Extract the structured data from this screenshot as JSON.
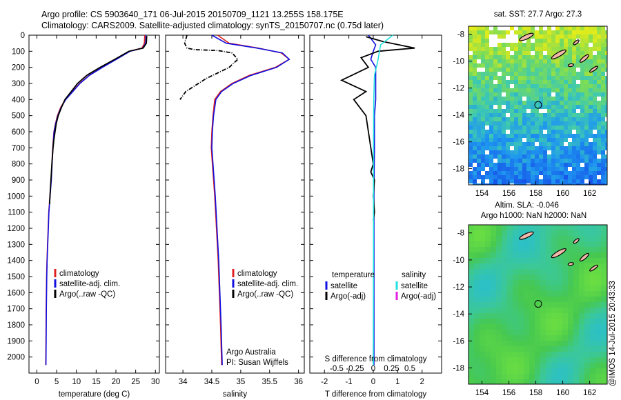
{
  "header": {
    "line1": "Argo profile: CS 5903640_171 06-Jul-2015 20150709_1121 13.255S 158.175E",
    "line2": "Climatology: CARS2009. Satellite-adjusted climatology: synTS_20150707.nc (0.75d later)"
  },
  "credit": "@IMOS 14-Jul-2015 20:43:33",
  "chart_data": [
    {
      "type": "line",
      "xlabel": "temperature (deg C)",
      "ylabel": "",
      "xlim": [
        -2,
        31
      ],
      "ylim": [
        2100,
        0
      ],
      "x_ticks": [
        0,
        5,
        10,
        15,
        20,
        25,
        30
      ],
      "y_ticks": [
        0,
        100,
        200,
        300,
        400,
        500,
        600,
        700,
        800,
        900,
        1000,
        1100,
        1200,
        1300,
        1400,
        1500,
        1600,
        1700,
        1800,
        1900,
        2000
      ],
      "legend": [
        "climatology",
        "satellite-adj. clim.",
        "Argo(..raw -QC)"
      ],
      "series": [
        {
          "name": "climatology",
          "color": "#e02020",
          "x": [
            27.3,
            27.2,
            26.6,
            23.5,
            20.0,
            16.5,
            13.2,
            10.8,
            9.0,
            7.2,
            6.0,
            5.2,
            4.7,
            4.3,
            4.0,
            3.8,
            3.6,
            3.3,
            3.0,
            2.85,
            2.7,
            2.55,
            2.45,
            2.35,
            2.3,
            2.25
          ],
          "y": [
            0,
            50,
            80,
            100,
            150,
            200,
            250,
            300,
            350,
            400,
            450,
            500,
            550,
            600,
            700,
            800,
            900,
            1000,
            1100,
            1200,
            1300,
            1400,
            1500,
            1700,
            1900,
            2050
          ]
        },
        {
          "name": "satellite-adj. clim.",
          "color": "#1010e0",
          "x": [
            27.6,
            27.5,
            26.8,
            23.6,
            20.1,
            16.6,
            13.3,
            10.9,
            9.1,
            7.3,
            6.1,
            5.3,
            4.75,
            4.35,
            4.05,
            3.85,
            3.65,
            3.35,
            3.05,
            2.9,
            2.75,
            2.6,
            2.5,
            2.4,
            2.35,
            2.3
          ],
          "y": [
            0,
            50,
            80,
            100,
            150,
            200,
            250,
            300,
            350,
            400,
            450,
            500,
            550,
            600,
            700,
            800,
            900,
            1000,
            1100,
            1200,
            1300,
            1400,
            1500,
            1700,
            1900,
            2050
          ]
        },
        {
          "name": "Argo(..raw -QC)",
          "color": "#000000",
          "x": [
            27.8,
            27.7,
            26.9,
            23.3,
            19.7,
            16.0,
            12.6,
            10.3,
            8.7,
            7.1,
            6.2,
            5.4,
            4.9,
            4.6,
            4.3,
            4.1,
            3.8,
            3.55,
            3.3,
            3.2
          ],
          "y": [
            5,
            50,
            80,
            100,
            150,
            200,
            250,
            300,
            350,
            400,
            450,
            500,
            550,
            600,
            650,
            700,
            800,
            900,
            1000,
            1050
          ]
        }
      ]
    },
    {
      "type": "line",
      "xlabel": "salinity",
      "xlim": [
        33.7,
        36.1
      ],
      "ylim": [
        2100,
        0
      ],
      "x_ticks": [
        34,
        34.5,
        35,
        35.5,
        36
      ],
      "legend": [
        "climatology",
        "satellite-adj. clim.",
        "Argo(..raw -QC)"
      ],
      "annotation": [
        "Argo Australia",
        "PI: Susan Wijffels"
      ],
      "series": [
        {
          "name": "climatology",
          "color": "#e02020",
          "x": [
            34.6,
            34.8,
            35.3,
            35.7,
            35.84,
            35.6,
            35.15,
            34.85,
            34.65,
            34.55,
            34.52,
            34.5,
            34.49,
            34.51,
            34.55,
            34.58,
            34.61,
            34.63,
            34.65,
            34.67
          ],
          "y": [
            0,
            50,
            80,
            110,
            150,
            200,
            250,
            300,
            350,
            400,
            500,
            600,
            700,
            800,
            1000,
            1200,
            1400,
            1600,
            1800,
            2050
          ]
        },
        {
          "name": "satellite-adj. clim.",
          "color": "#1010e0",
          "x": [
            34.5,
            34.75,
            35.28,
            35.72,
            35.84,
            35.62,
            35.18,
            34.87,
            34.67,
            34.57,
            34.53,
            34.51,
            34.5,
            34.52,
            34.56,
            34.59,
            34.62,
            34.64,
            34.66,
            34.68
          ],
          "y": [
            0,
            50,
            80,
            110,
            150,
            200,
            250,
            300,
            350,
            400,
            500,
            600,
            700,
            800,
            1000,
            1200,
            1400,
            1600,
            1800,
            2050
          ]
        },
        {
          "name": "Argo(..raw -QC)",
          "color": "#000000",
          "x": [
            34.07,
            34.03,
            34.07,
            34.2,
            34.6,
            34.85,
            34.95,
            34.8,
            34.4,
            34.05,
            33.95
          ],
          "y": [
            0,
            50,
            80,
            90,
            95,
            110,
            150,
            200,
            270,
            350,
            400
          ]
        }
      ]
    },
    {
      "type": "line",
      "xlabel": "T difference from climatology",
      "x2label": "S difference from climatology",
      "xlim": [
        -2.6,
        2.8
      ],
      "ylim": [
        2100,
        0
      ],
      "x_ticks": [
        -2,
        -1,
        0,
        1,
        2
      ],
      "x2_ticks": [
        "-0.5",
        "-0.25",
        "0",
        "0.25",
        "0.5"
      ],
      "legend": {
        "temperature": [
          "satellite",
          "Argo(-adj)"
        ],
        "salinity": [
          "satellite",
          "Argo(-adj)"
        ]
      },
      "series": [
        {
          "name": "temperature satellite",
          "color": "#1010e0",
          "x": [
            -0.2,
            0.1,
            0.0,
            -0.1,
            0.1,
            0.1,
            0.1,
            0.05,
            0.05,
            0.05,
            0.04,
            0.03,
            0.03,
            0.03,
            0.03,
            0.03,
            0.03
          ],
          "y": [
            0,
            60,
            100,
            150,
            200,
            300,
            400,
            500,
            600,
            700,
            800,
            1000,
            1200,
            1400,
            1600,
            1800,
            2050
          ]
        },
        {
          "name": "temperature Argo(-adj)",
          "color": "#000000",
          "x": [
            -0.3,
            0.4,
            1.7,
            0.2,
            -0.5,
            -0.2,
            -1.3,
            -0.3,
            -0.8,
            -0.3,
            -0.2,
            -0.1,
            0.0,
            -0.1,
            0.05,
            0.0,
            0.05,
            0.0
          ],
          "y": [
            10,
            40,
            80,
            100,
            140,
            200,
            280,
            350,
            400,
            500,
            600,
            700,
            800,
            850,
            900,
            1000,
            1100,
            1150
          ]
        },
        {
          "name": "salinity satellite",
          "color": "#20e0e0",
          "x": [
            0.8,
            0.3,
            0.2,
            0.05,
            0.02,
            0.01,
            0.01,
            0.0
          ],
          "y": [
            0,
            60,
            150,
            250,
            400,
            700,
            1200,
            2050
          ]
        },
        {
          "name": "salinity Argo(-adj)",
          "color": "#e020e0",
          "x": [],
          "y": []
        }
      ]
    },
    {
      "type": "heatmap",
      "title": "sat. SST: 27.7 Argo: 27.3",
      "x_ticks": [
        154,
        156,
        158,
        160,
        162
      ],
      "y_ticks": [
        -8,
        -10,
        -12,
        -14,
        -16,
        -18
      ],
      "xlim": [
        153,
        163.3
      ],
      "ylim": [
        -19.2,
        -7.4
      ],
      "marker": {
        "lon": 158.175,
        "lat": -13.255
      }
    },
    {
      "type": "heatmap",
      "title": "Altim. SLA: -0.046",
      "subtitle": "Argo h1000: NaN h2000: NaN",
      "x_ticks": [
        154,
        156,
        158,
        160,
        162
      ],
      "y_ticks": [
        -8,
        -10,
        -12,
        -14,
        -16,
        -18
      ],
      "xlim": [
        153,
        163.3
      ],
      "ylim": [
        -19.2,
        -7.4
      ],
      "marker": {
        "lon": 158.175,
        "lat": -13.255
      }
    }
  ]
}
